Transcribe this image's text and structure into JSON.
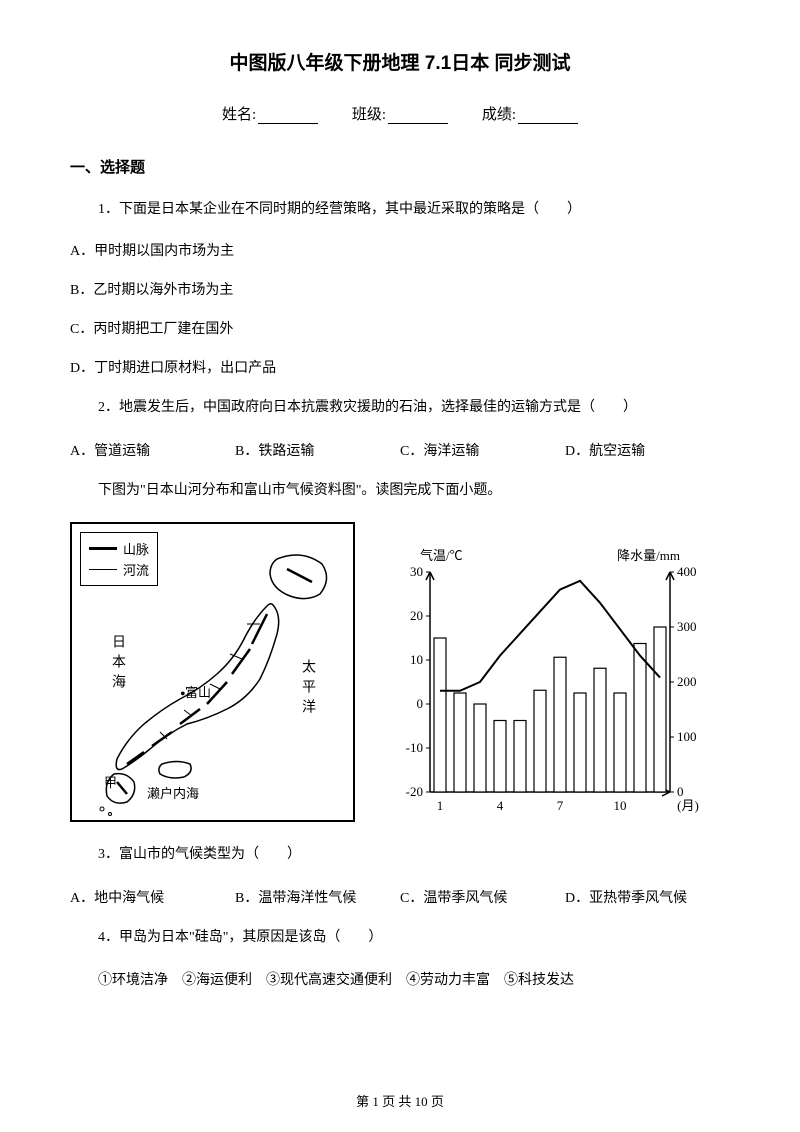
{
  "title": "中图版八年级下册地理 7.1日本 同步测试",
  "info": {
    "name_label": "姓名:",
    "class_label": "班级:",
    "score_label": "成绩:"
  },
  "section1": "一、选择题",
  "q1": {
    "stem": "1．下面是日本某企业在不同时期的经营策略，其中最近采取的策略是（　　）",
    "a": "A．甲时期以国内市场为主",
    "b": "B．乙时期以海外市场为主",
    "c": "C．丙时期把工厂建在国外",
    "d": "D．丁时期进口原材料，出口产品"
  },
  "q2": {
    "stem": "2．地震发生后，中国政府向日本抗震救灾援助的石油，选择最佳的运输方式是（　　）",
    "a": "A．管道运输",
    "b": "B．铁路运输",
    "c": "C．海洋运输",
    "d": "D．航空运输"
  },
  "intro3": "下图为\"日本山河分布和富山市气候资料图\"。读图完成下面小题。",
  "map": {
    "legend_mountain": "山脉",
    "legend_river": "河流",
    "sea_japan": "日本海",
    "fushan": "富山",
    "pacific": "太平洋",
    "setonaikai": "濑户内海",
    "jia": "甲"
  },
  "chart": {
    "temp_axis": "气温/℃",
    "precip_axis": "降水量/mm",
    "months": [
      "1",
      "4",
      "7",
      "10",
      "(月)"
    ],
    "y_left": [
      30,
      20,
      10,
      0,
      -10,
      -20
    ],
    "y_right": [
      400,
      300,
      200,
      100,
      0
    ],
    "temp_values": [
      3,
      3,
      5,
      11,
      16,
      21,
      26,
      28,
      23,
      17,
      11,
      6
    ],
    "precip_values": [
      280,
      180,
      160,
      130,
      130,
      185,
      245,
      180,
      225,
      180,
      270,
      300
    ],
    "line_color": "#000000",
    "bar_fill": "#ffffff",
    "bar_stroke": "#000000",
    "axis_color": "#000000",
    "font_size": 13
  },
  "q3": {
    "stem": "3．富山市的气候类型为（　　）",
    "a": "A．地中海气候",
    "b": "B．温带海洋性气候",
    "c": "C．温带季风气候",
    "d": "D．亚热带季风气候"
  },
  "q4": {
    "stem": "4．甲岛为日本\"硅岛\"，其原因是该岛（　　）",
    "items": "①环境洁净　②海运便利　③现代高速交通便利　④劳动力丰富　⑤科技发达"
  },
  "footer": {
    "text": "第 1 页 共 10 页"
  }
}
